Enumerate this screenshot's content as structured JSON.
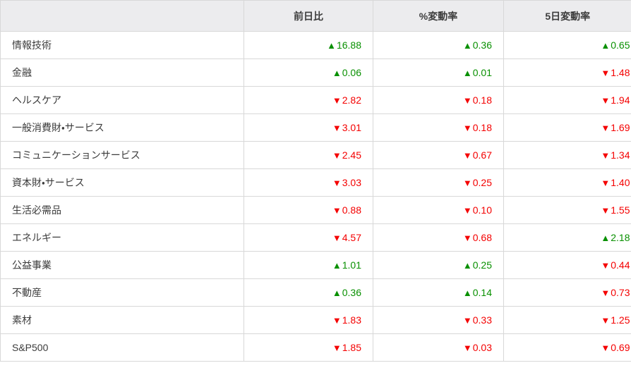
{
  "symbols": {
    "up": "▲",
    "down": "▼"
  },
  "colors": {
    "up_green": "#089000",
    "down_red": "#f40000",
    "header_bg": "#ececee",
    "border": "#d8d8d8",
    "text": "#3c3c3c"
  },
  "table": {
    "columns": [
      "",
      "前日比",
      "%変動率",
      "5日変動率"
    ],
    "rows": [
      {
        "label": "情報技術",
        "values": [
          {
            "dir": "up",
            "value": "16.88"
          },
          {
            "dir": "up",
            "value": "0.36"
          },
          {
            "dir": "up",
            "value": "0.65"
          }
        ]
      },
      {
        "label": "金融",
        "values": [
          {
            "dir": "up",
            "value": "0.06"
          },
          {
            "dir": "up",
            "value": "0.01"
          },
          {
            "dir": "down",
            "value": "1.48"
          }
        ]
      },
      {
        "label": "ヘルスケア",
        "values": [
          {
            "dir": "down",
            "value": "2.82"
          },
          {
            "dir": "down",
            "value": "0.18"
          },
          {
            "dir": "down",
            "value": "1.94"
          }
        ]
      },
      {
        "label": "一般消費財・サービス",
        "values": [
          {
            "dir": "down",
            "value": "3.01"
          },
          {
            "dir": "down",
            "value": "0.18"
          },
          {
            "dir": "down",
            "value": "1.69"
          }
        ]
      },
      {
        "label": "コミュニケーションサービス",
        "values": [
          {
            "dir": "down",
            "value": "2.45"
          },
          {
            "dir": "down",
            "value": "0.67"
          },
          {
            "dir": "down",
            "value": "1.34"
          }
        ]
      },
      {
        "label": "資本財・サービス",
        "values": [
          {
            "dir": "down",
            "value": "3.03"
          },
          {
            "dir": "down",
            "value": "0.25"
          },
          {
            "dir": "down",
            "value": "1.40"
          }
        ]
      },
      {
        "label": "生活必需品",
        "values": [
          {
            "dir": "down",
            "value": "0.88"
          },
          {
            "dir": "down",
            "value": "0.10"
          },
          {
            "dir": "down",
            "value": "1.55"
          }
        ]
      },
      {
        "label": "エネルギー",
        "values": [
          {
            "dir": "down",
            "value": "4.57"
          },
          {
            "dir": "down",
            "value": "0.68"
          },
          {
            "dir": "up",
            "value": "2.18"
          }
        ]
      },
      {
        "label": "公益事業",
        "values": [
          {
            "dir": "up",
            "value": "1.01"
          },
          {
            "dir": "up",
            "value": "0.25"
          },
          {
            "dir": "down",
            "value": "0.44"
          }
        ]
      },
      {
        "label": "不動産",
        "values": [
          {
            "dir": "up",
            "value": "0.36"
          },
          {
            "dir": "up",
            "value": "0.14"
          },
          {
            "dir": "down",
            "value": "0.73"
          }
        ]
      },
      {
        "label": "素材",
        "values": [
          {
            "dir": "down",
            "value": "1.83"
          },
          {
            "dir": "down",
            "value": "0.33"
          },
          {
            "dir": "down",
            "value": "1.25"
          }
        ]
      },
      {
        "label": "S&P500",
        "values": [
          {
            "dir": "down",
            "value": "1.85"
          },
          {
            "dir": "down",
            "value": "0.03"
          },
          {
            "dir": "down",
            "value": "0.69"
          }
        ]
      }
    ]
  }
}
